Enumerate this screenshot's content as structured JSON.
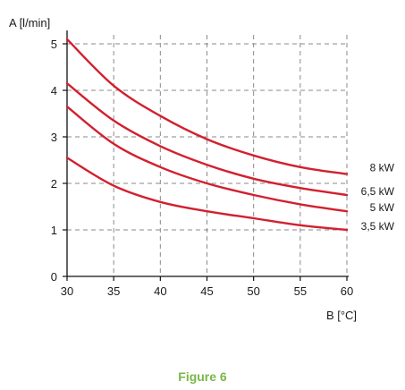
{
  "caption": "Figure 6",
  "colors": {
    "series": "#d2202e",
    "caption": "#7ab648",
    "grid": "#8a8a8a",
    "axis": "#111111"
  },
  "chart_data": {
    "type": "line",
    "ylabel": "A [l/min]",
    "xlabel": "B [°C]",
    "xlim": [
      30,
      60
    ],
    "ylim": [
      0,
      5
    ],
    "x_ticks": [
      "30",
      "35",
      "40",
      "45",
      "50",
      "55",
      "60"
    ],
    "y_ticks": [
      "0",
      "1",
      "2",
      "3",
      "4",
      "5"
    ],
    "grid": true,
    "x": [
      30,
      35,
      40,
      45,
      50,
      55,
      60
    ],
    "series": [
      {
        "name": "8 kW",
        "values": [
          5.1,
          4.1,
          3.45,
          2.95,
          2.6,
          2.35,
          2.2
        ]
      },
      {
        "name": "6,5 kW",
        "values": [
          4.15,
          3.35,
          2.8,
          2.4,
          2.1,
          1.9,
          1.75
        ]
      },
      {
        "name": "5 kW",
        "values": [
          3.65,
          2.85,
          2.35,
          2.0,
          1.75,
          1.55,
          1.4
        ]
      },
      {
        "name": "3,5 kW",
        "values": [
          2.55,
          1.95,
          1.6,
          1.4,
          1.25,
          1.1,
          1.0
        ]
      }
    ]
  }
}
